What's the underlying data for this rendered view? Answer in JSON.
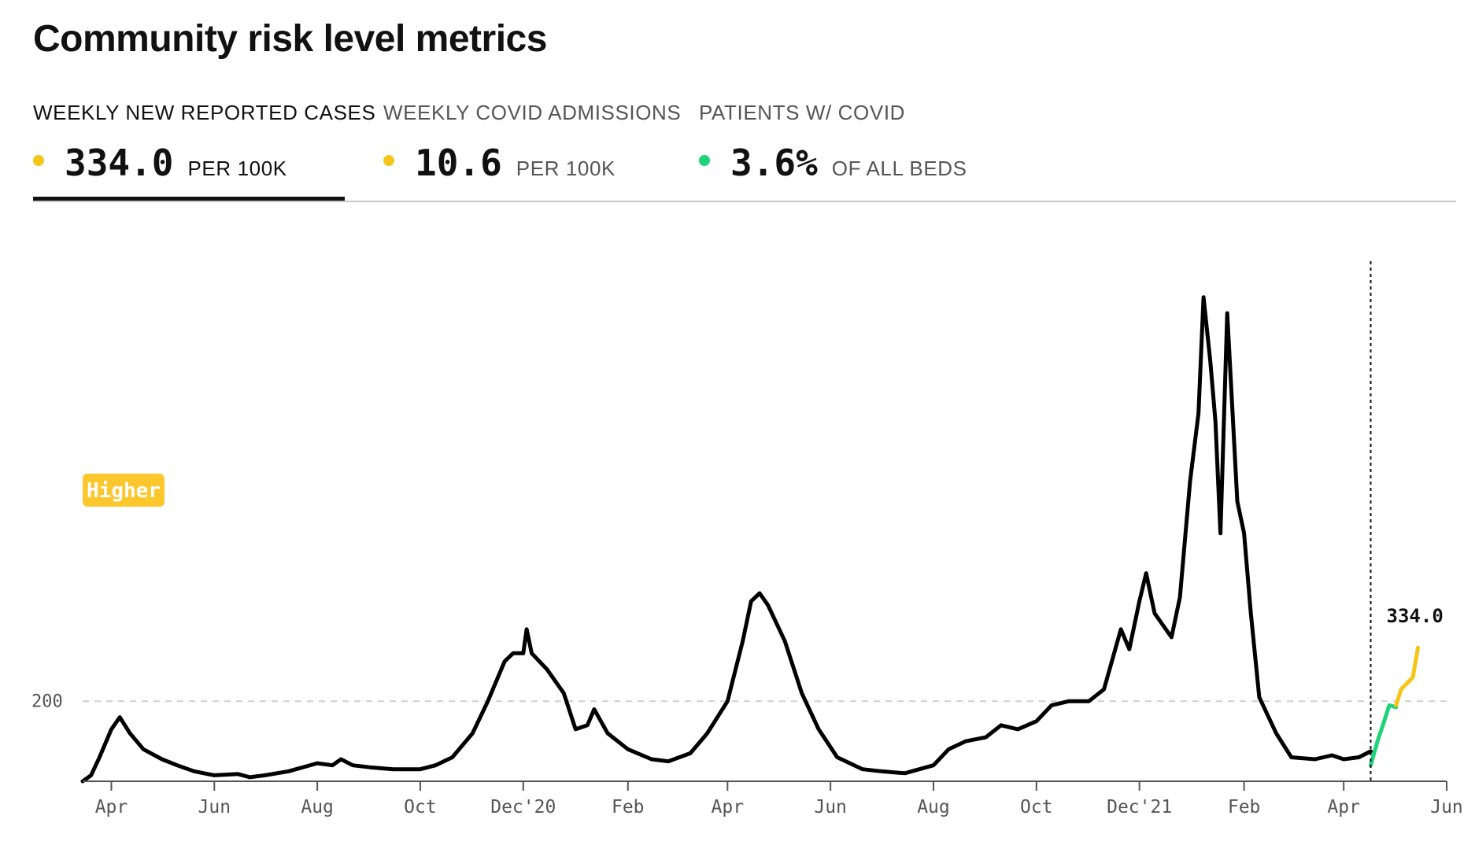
{
  "title": "Community risk level metrics",
  "tabs": [
    {
      "label": "WEEKLY NEW REPORTED CASES",
      "value": "334.0",
      "unit": "PER 100K",
      "dot_color": "#f5c518",
      "active": true
    },
    {
      "label": "WEEKLY COVID ADMISSIONS",
      "value": "10.6",
      "unit": "PER 100K",
      "dot_color": "#f5c518",
      "active": false
    },
    {
      "label": "PATIENTS W/ COVID",
      "value": "3.6%",
      "unit": "OF ALL BEDS",
      "dot_color": "#1ed37a",
      "active": false
    }
  ],
  "colors": {
    "line": "#000000",
    "low": "#1ed37a",
    "medium": "#f5c518",
    "badge": "#fcc72c",
    "axis": "#555555"
  },
  "chart_data": {
    "type": "line",
    "ylim": [
      0,
      1300
    ],
    "reference_line": {
      "y": 200,
      "label": "200"
    },
    "badge": {
      "label": "Higher"
    },
    "current_value_label": "334.0",
    "xaxis": {
      "start": "2020-03-15",
      "end": "2022-06-01",
      "ticks": [
        {
          "date": "2020-04-01",
          "label": "Apr"
        },
        {
          "date": "2020-06-01",
          "label": "Jun"
        },
        {
          "date": "2020-08-01",
          "label": "Aug"
        },
        {
          "date": "2020-10-01",
          "label": "Oct"
        },
        {
          "date": "2020-12-01",
          "label": "Dec'20"
        },
        {
          "date": "2021-02-01",
          "label": "Feb"
        },
        {
          "date": "2021-04-01",
          "label": "Apr"
        },
        {
          "date": "2021-06-01",
          "label": "Jun"
        },
        {
          "date": "2021-08-01",
          "label": "Aug"
        },
        {
          "date": "2021-10-01",
          "label": "Oct"
        },
        {
          "date": "2021-12-01",
          "label": "Dec'21"
        },
        {
          "date": "2022-02-01",
          "label": "Feb"
        },
        {
          "date": "2022-04-01",
          "label": "Apr"
        },
        {
          "date": "2022-06-01",
          "label": "Jun"
        }
      ]
    },
    "today": "2022-04-17",
    "series": [
      {
        "role": "historical",
        "points": [
          [
            "2020-03-15",
            0
          ],
          [
            "2020-03-20",
            15
          ],
          [
            "2020-03-25",
            60
          ],
          [
            "2020-04-01",
            130
          ],
          [
            "2020-04-06",
            160
          ],
          [
            "2020-04-12",
            120
          ],
          [
            "2020-04-20",
            80
          ],
          [
            "2020-05-01",
            55
          ],
          [
            "2020-05-10",
            40
          ],
          [
            "2020-05-20",
            25
          ],
          [
            "2020-06-01",
            15
          ],
          [
            "2020-06-15",
            18
          ],
          [
            "2020-06-22",
            10
          ],
          [
            "2020-07-01",
            15
          ],
          [
            "2020-07-15",
            25
          ],
          [
            "2020-08-01",
            45
          ],
          [
            "2020-08-10",
            40
          ],
          [
            "2020-08-15",
            55
          ],
          [
            "2020-08-22",
            40
          ],
          [
            "2020-09-01",
            35
          ],
          [
            "2020-09-15",
            30
          ],
          [
            "2020-10-01",
            30
          ],
          [
            "2020-10-10",
            40
          ],
          [
            "2020-10-20",
            60
          ],
          [
            "2020-11-01",
            120
          ],
          [
            "2020-11-10",
            200
          ],
          [
            "2020-11-20",
            300
          ],
          [
            "2020-11-25",
            320
          ],
          [
            "2020-12-01",
            320
          ],
          [
            "2020-12-03",
            380
          ],
          [
            "2020-12-06",
            320
          ],
          [
            "2020-12-15",
            280
          ],
          [
            "2020-12-25",
            220
          ],
          [
            "2021-01-01",
            130
          ],
          [
            "2021-01-08",
            140
          ],
          [
            "2021-01-12",
            180
          ],
          [
            "2021-01-20",
            120
          ],
          [
            "2021-02-01",
            80
          ],
          [
            "2021-02-15",
            55
          ],
          [
            "2021-02-25",
            50
          ],
          [
            "2021-03-10",
            70
          ],
          [
            "2021-03-20",
            120
          ],
          [
            "2021-04-01",
            200
          ],
          [
            "2021-04-10",
            350
          ],
          [
            "2021-04-15",
            450
          ],
          [
            "2021-04-20",
            470
          ],
          [
            "2021-04-25",
            440
          ],
          [
            "2021-05-05",
            350
          ],
          [
            "2021-05-15",
            220
          ],
          [
            "2021-05-25",
            130
          ],
          [
            "2021-06-05",
            60
          ],
          [
            "2021-06-20",
            30
          ],
          [
            "2021-07-01",
            25
          ],
          [
            "2021-07-15",
            20
          ],
          [
            "2021-08-01",
            40
          ],
          [
            "2021-08-10",
            80
          ],
          [
            "2021-08-20",
            100
          ],
          [
            "2021-09-01",
            110
          ],
          [
            "2021-09-10",
            140
          ],
          [
            "2021-09-20",
            130
          ],
          [
            "2021-10-01",
            150
          ],
          [
            "2021-10-10",
            190
          ],
          [
            "2021-10-20",
            200
          ],
          [
            "2021-11-01",
            200
          ],
          [
            "2021-11-10",
            230
          ],
          [
            "2021-11-20",
            380
          ],
          [
            "2021-11-25",
            330
          ],
          [
            "2021-12-01",
            450
          ],
          [
            "2021-12-05",
            520
          ],
          [
            "2021-12-10",
            420
          ],
          [
            "2021-12-20",
            360
          ],
          [
            "2021-12-25",
            460
          ],
          [
            "2021-12-31",
            750
          ],
          [
            "2022-01-05",
            920
          ],
          [
            "2022-01-08",
            1210
          ],
          [
            "2022-01-12",
            1050
          ],
          [
            "2022-01-15",
            900
          ],
          [
            "2022-01-18",
            620
          ],
          [
            "2022-01-22",
            1170
          ],
          [
            "2022-01-28",
            700
          ],
          [
            "2022-02-01",
            620
          ],
          [
            "2022-02-05",
            420
          ],
          [
            "2022-02-10",
            210
          ],
          [
            "2022-02-20",
            120
          ],
          [
            "2022-03-01",
            60
          ],
          [
            "2022-03-15",
            55
          ],
          [
            "2022-03-25",
            65
          ],
          [
            "2022-04-01",
            55
          ],
          [
            "2022-04-10",
            60
          ],
          [
            "2022-04-17",
            75
          ]
        ]
      },
      {
        "role": "low",
        "points": [
          [
            "2022-04-17",
            40
          ],
          [
            "2022-04-21",
            100
          ],
          [
            "2022-04-25",
            150
          ],
          [
            "2022-04-28",
            190
          ],
          [
            "2022-05-02",
            185
          ]
        ]
      },
      {
        "role": "medium",
        "points": [
          [
            "2022-05-02",
            190
          ],
          [
            "2022-05-05",
            230
          ],
          [
            "2022-05-12",
            260
          ],
          [
            "2022-05-15",
            334
          ]
        ]
      }
    ]
  }
}
